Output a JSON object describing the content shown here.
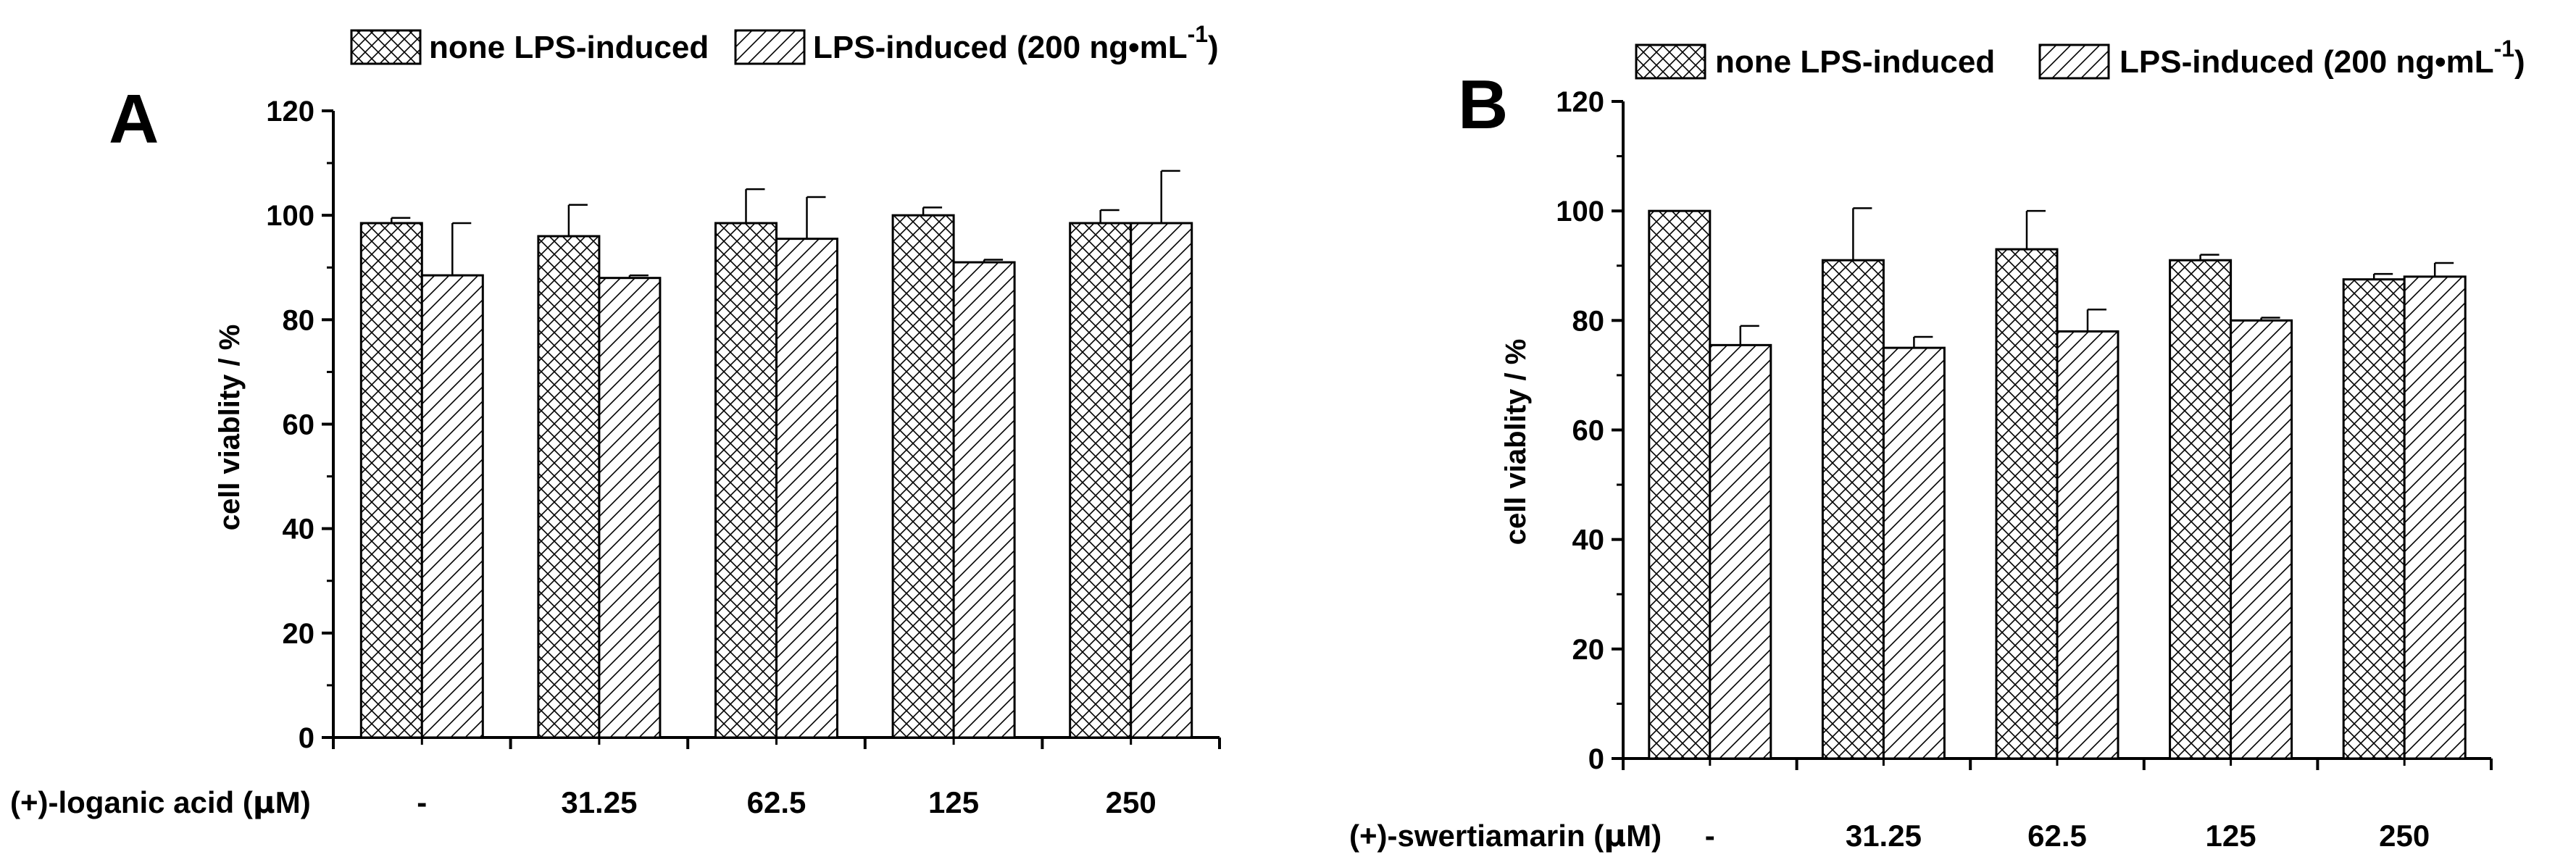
{
  "chart_data": [
    {
      "type": "bar",
      "panel_label": "A",
      "categories": [
        "-",
        "31.25",
        "62.5",
        "125",
        "250"
      ],
      "x_prefix_label": "(+)-loganic acid",
      "x_unit_mu": "μ",
      "x_unit_rest": "M)",
      "ylabel": "cell viablity / %",
      "ylim": [
        0,
        120
      ],
      "yticks": [
        "0",
        "20",
        "40",
        "60",
        "80",
        "100",
        "120"
      ],
      "legend": {
        "placement": "top",
        "entries": [
          {
            "label": "none LPS-induced"
          },
          {
            "label_main": "LPS-induced (200 ng•mL",
            "label_sup": "-1",
            "label_close": ")"
          }
        ]
      },
      "series": [
        {
          "name": "none LPS-induced",
          "pattern": "crosshatch",
          "values": [
            98.5,
            96,
            98.5,
            100,
            98.5
          ],
          "errors": [
            1,
            6,
            6.5,
            1.5,
            2.5
          ]
        },
        {
          "name": "LPS-induced (200 ng•mL-1)",
          "pattern": "diagonal",
          "values": [
            88.5,
            88,
            95.5,
            91,
            98.5
          ],
          "errors": [
            10,
            0.5,
            8,
            0.5,
            10
          ]
        }
      ]
    },
    {
      "type": "bar",
      "panel_label": "B",
      "categories": [
        "-",
        "31.25",
        "62.5",
        "125",
        "250"
      ],
      "x_prefix_label": "(+)-swertiamarin",
      "x_unit_mu": "μ",
      "x_unit_rest": "M)",
      "ylabel": "cell viablity / %",
      "ylim": [
        0,
        120
      ],
      "yticks": [
        "0",
        "20",
        "40",
        "60",
        "80",
        "100",
        "120"
      ],
      "legend": {
        "placement": "top",
        "entries": [
          {
            "label": "none LPS-induced"
          },
          {
            "label_main": "LPS-induced (200 ng•mL",
            "label_sup": "-1",
            "label_close": ")"
          }
        ]
      },
      "series": [
        {
          "name": "none LPS-induced",
          "pattern": "crosshatch",
          "values": [
            100,
            91,
            93,
            91,
            87.5
          ],
          "errors": [
            0,
            9.5,
            7,
            1,
            1
          ]
        },
        {
          "name": "LPS-induced (200 ng•mL-1)",
          "pattern": "diagonal",
          "values": [
            75.5,
            75,
            78,
            80,
            88
          ],
          "errors": [
            3.5,
            2,
            4,
            0.5,
            2.5
          ]
        }
      ]
    }
  ]
}
